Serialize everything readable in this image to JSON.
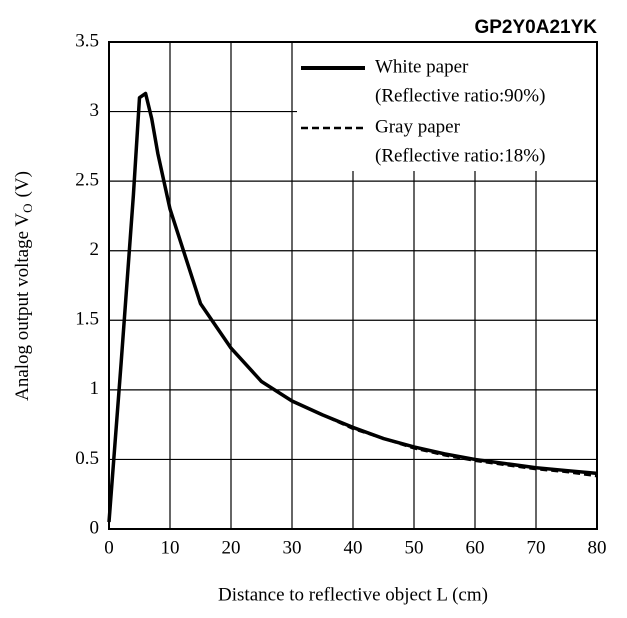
{
  "chart_data": {
    "type": "line",
    "title": "GP2Y0A21YK",
    "xlabel": "Distance to reflective object L (cm)",
    "ylabel": {
      "text": "Analog output voltage V",
      "subscript": "O",
      "suffix": "(V)"
    },
    "x": [
      0,
      2,
      4,
      5,
      6,
      7,
      8,
      10,
      15,
      20,
      25,
      30,
      35,
      40,
      45,
      50,
      55,
      60,
      65,
      70,
      75,
      80
    ],
    "series": [
      {
        "name": "White paper",
        "description": "(Reflective ratio:90%)",
        "color": "#000000",
        "dash": "solid",
        "values": [
          0.05,
          1.2,
          2.4,
          3.1,
          3.13,
          2.95,
          2.7,
          2.3,
          1.62,
          1.3,
          1.06,
          0.92,
          0.82,
          0.73,
          0.65,
          0.59,
          0.54,
          0.5,
          0.47,
          0.44,
          0.42,
          0.4
        ]
      },
      {
        "name": "Gray paper",
        "description": "(Reflective ratio:18%)",
        "color": "#000000",
        "dash": "dashed",
        "values": [
          0.05,
          1.2,
          2.4,
          3.1,
          3.13,
          2.95,
          2.7,
          2.3,
          1.62,
          1.3,
          1.06,
          0.92,
          0.82,
          0.72,
          0.65,
          0.58,
          0.53,
          0.49,
          0.46,
          0.43,
          0.41,
          0.38
        ]
      }
    ],
    "xlim": [
      0,
      80
    ],
    "xticks": [
      0,
      10,
      20,
      30,
      40,
      50,
      60,
      70,
      80
    ],
    "ylim": [
      0,
      3.5
    ],
    "yticks": [
      0,
      0.5,
      1,
      1.5,
      2,
      2.5,
      3,
      3.5
    ],
    "grid": true,
    "legend": "top-right"
  }
}
